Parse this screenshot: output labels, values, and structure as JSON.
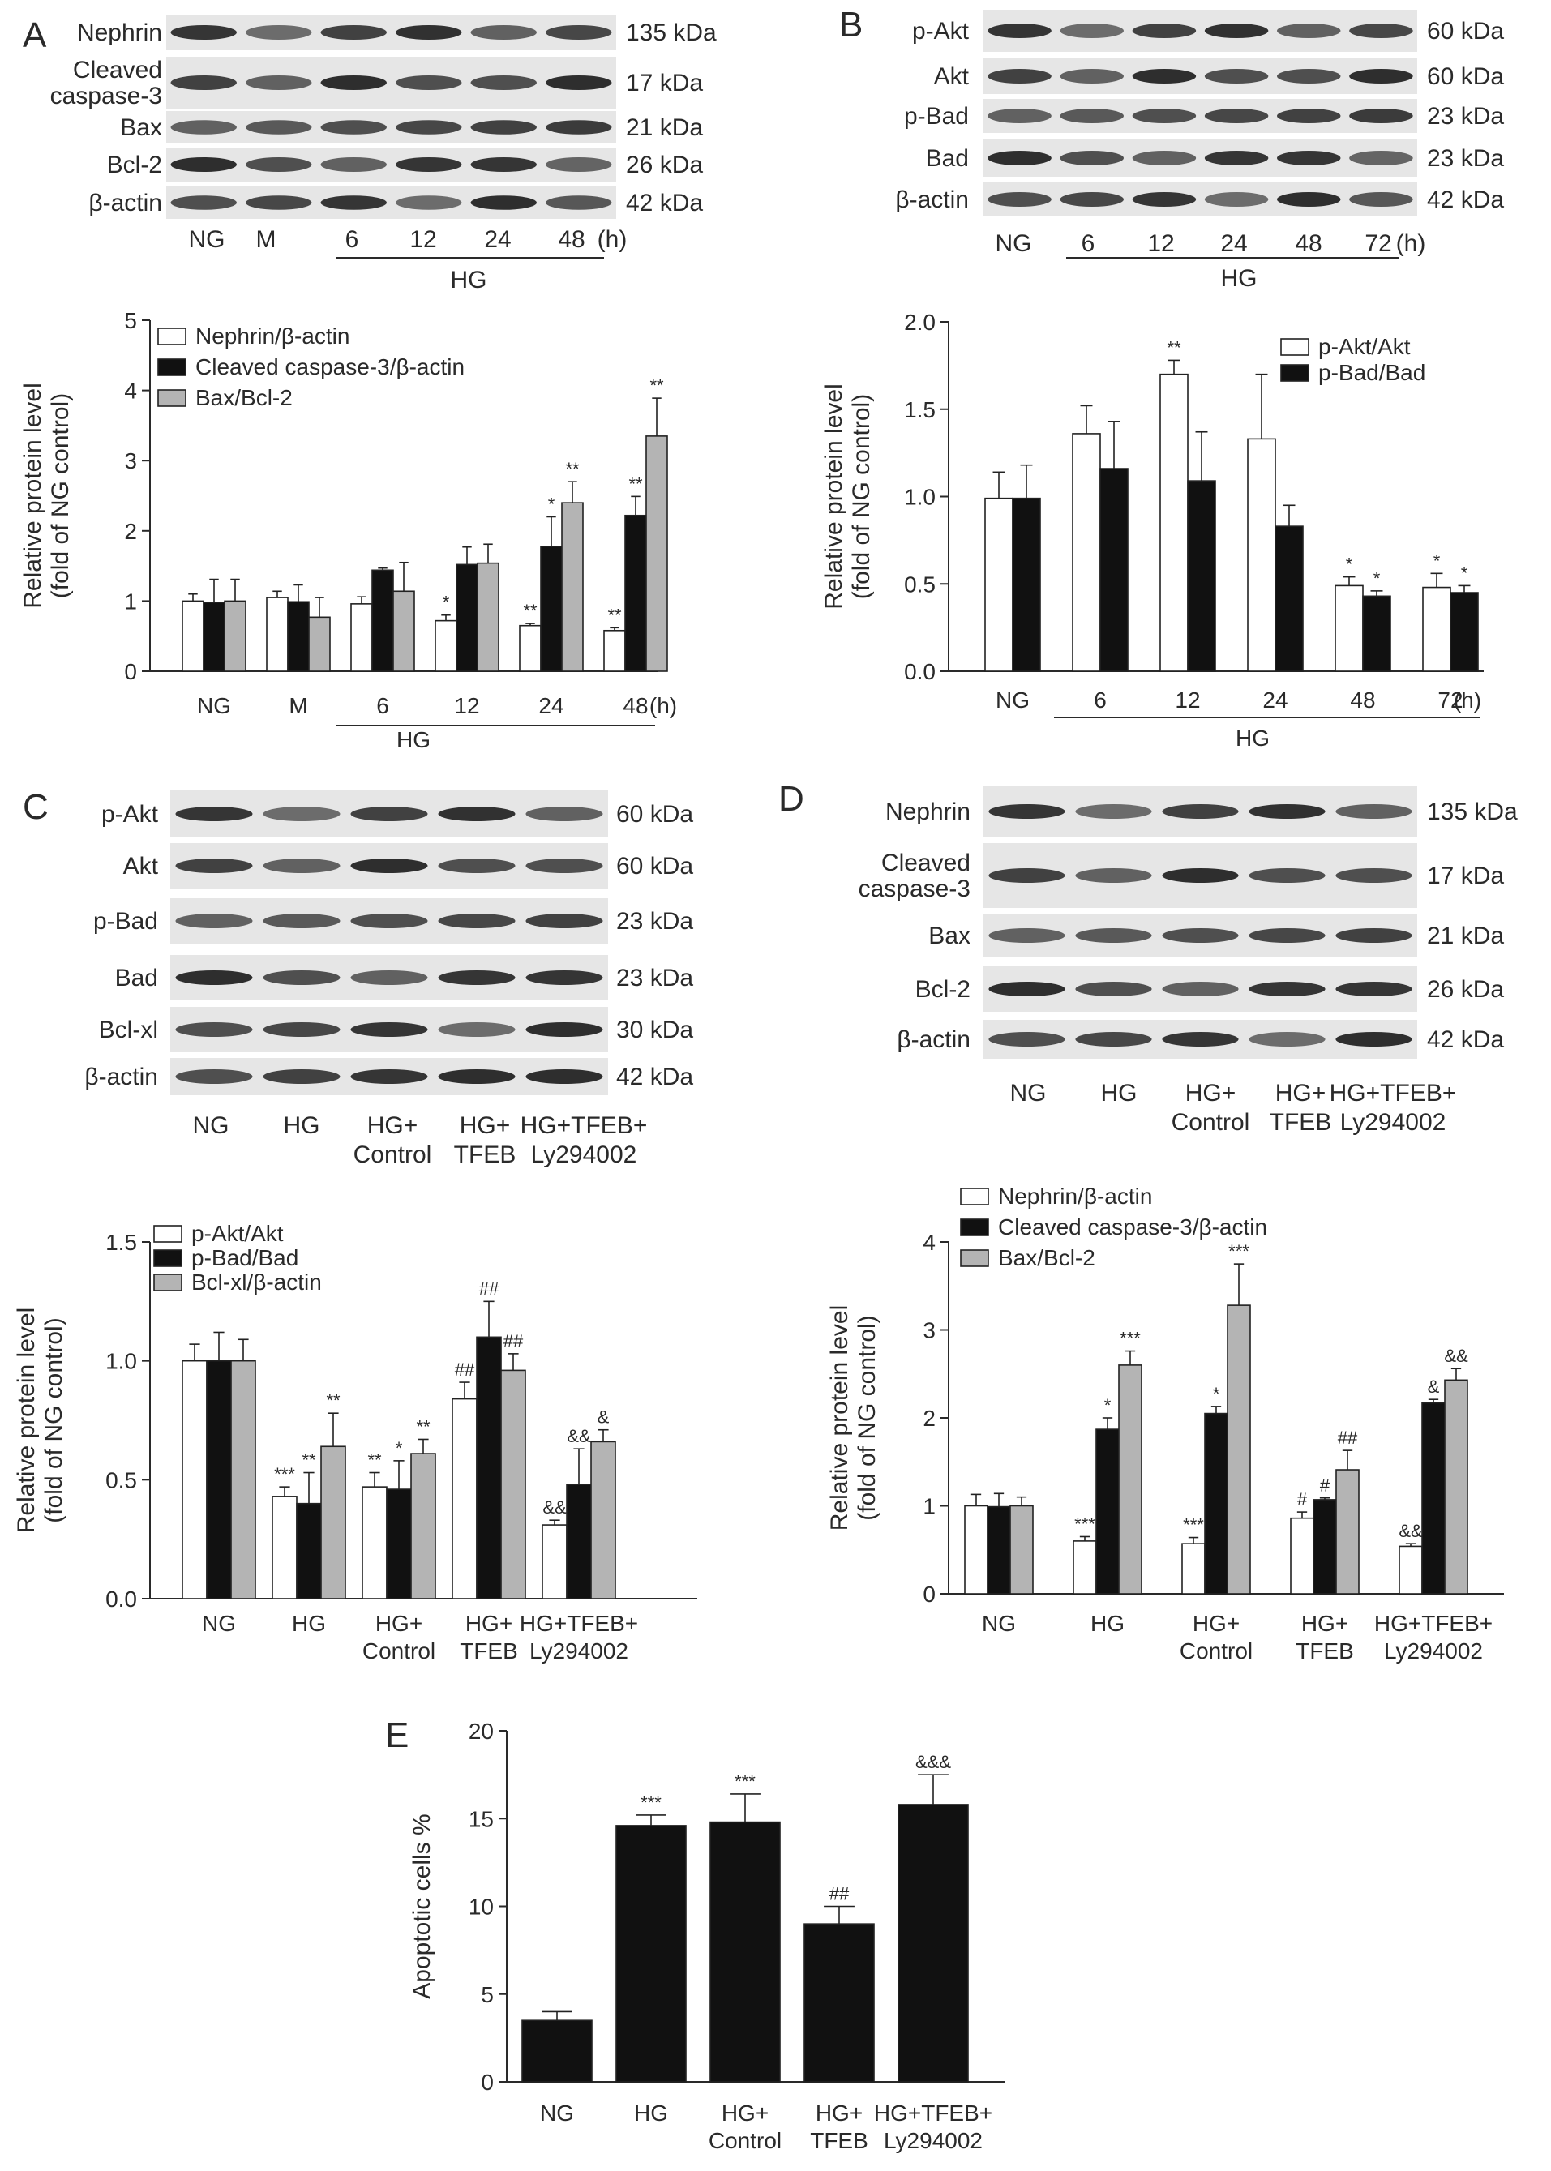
{
  "colors": {
    "white_bar": "#ffffff",
    "black_bar": "#111111",
    "gray_bar": "#b4b4b4",
    "axis": "#2a2a2a"
  },
  "panels": [
    {
      "letter": "A",
      "blots": [
        {
          "label": "Nephrin",
          "kda": "135 kDa"
        },
        {
          "label_lines": [
            "Cleaved",
            "caspase-3"
          ],
          "kda": "17 kDa"
        },
        {
          "label": "Bax",
          "kda": "21 kDa"
        },
        {
          "label": "Bcl-2",
          "kda": "26 kDa"
        },
        {
          "label": "β-actin",
          "kda": "42 kDa"
        }
      ],
      "lanes": [
        "NG",
        "M",
        "6",
        "12",
        "24",
        "48"
      ],
      "unit": "(h)",
      "group_label": "HG"
    },
    {
      "letter": "B",
      "blots": [
        {
          "label": "p-Akt",
          "kda": "60 kDa"
        },
        {
          "label": "Akt",
          "kda": "60 kDa"
        },
        {
          "label": "p-Bad",
          "kda": "23 kDa"
        },
        {
          "label": "Bad",
          "kda": "23 kDa"
        },
        {
          "label": "β-actin",
          "kda": "42 kDa"
        }
      ],
      "lanes": [
        "NG",
        "6",
        "12",
        "24",
        "48",
        "72"
      ],
      "unit": "(h)",
      "group_label": "HG"
    },
    {
      "letter": "C",
      "blots": [
        {
          "label": "p-Akt",
          "kda": "60 kDa"
        },
        {
          "label": "Akt",
          "kda": "60 kDa"
        },
        {
          "label": "p-Bad",
          "kda": "23 kDa"
        },
        {
          "label": "Bad",
          "kda": "23 kDa"
        },
        {
          "label": "Bcl-xl",
          "kda": "30 kDa"
        },
        {
          "label": "β-actin",
          "kda": "42 kDa"
        }
      ],
      "lanes": [
        [
          "NG"
        ],
        [
          "HG"
        ],
        [
          "HG+",
          "Control"
        ],
        [
          "HG+",
          "TFEB"
        ],
        [
          "HG+TFEB+",
          "Ly294002"
        ]
      ]
    },
    {
      "letter": "D",
      "blots": [
        {
          "label": "Nephrin",
          "kda": "135 kDa"
        },
        {
          "label_lines": [
            "Cleaved",
            "caspase-3"
          ],
          "kda": "17 kDa"
        },
        {
          "label": "Bax",
          "kda": "21 kDa"
        },
        {
          "label": "Bcl-2",
          "kda": "26 kDa"
        },
        {
          "label": "β-actin",
          "kda": "42 kDa"
        }
      ],
      "lanes": [
        [
          "NG"
        ],
        [
          "HG"
        ],
        [
          "HG+",
          "Control"
        ],
        [
          "HG+",
          "TFEB"
        ],
        [
          "HG+TFEB+",
          "Ly294002"
        ]
      ]
    },
    {
      "letter": "E"
    }
  ],
  "chart_data": [
    {
      "panel": "A",
      "type": "bar",
      "categories": [
        [
          "NG"
        ],
        [
          "M"
        ],
        [
          "6"
        ],
        [
          "12"
        ],
        [
          "24"
        ],
        [
          "48"
        ]
      ],
      "x_unit": "(h)",
      "group_label": "HG",
      "ylabel": [
        "Relative protein level",
        "(fold of NG control)"
      ],
      "ylim": [
        0,
        5
      ],
      "yticks": [
        "0",
        "1",
        "2",
        "3",
        "4",
        "5"
      ],
      "legend_position": "top-left",
      "series": [
        {
          "name": "Nephrin/β-actin",
          "color": "#ffffff",
          "values": [
            1.0,
            1.05,
            0.96,
            0.72,
            0.65,
            0.58
          ],
          "errors": [
            0.1,
            0.09,
            0.1,
            0.08,
            0.03,
            0.04
          ],
          "sig": [
            "",
            "",
            "",
            "*",
            "**",
            "**"
          ]
        },
        {
          "name": "Cleaved caspase-3/β-actin",
          "color": "#111111",
          "values": [
            0.98,
            0.99,
            1.44,
            1.52,
            1.78,
            2.22
          ],
          "errors": [
            0.33,
            0.24,
            0.03,
            0.25,
            0.42,
            0.27
          ],
          "sig": [
            "",
            "",
            "",
            "",
            "*",
            "**"
          ]
        },
        {
          "name": "Bax/Bcl-2",
          "color": "#b4b4b4",
          "values": [
            1.0,
            0.77,
            1.14,
            1.54,
            2.4,
            3.35
          ],
          "errors": [
            0.31,
            0.28,
            0.41,
            0.27,
            0.3,
            0.54
          ],
          "sig": [
            "",
            "",
            "",
            "",
            "**",
            "**"
          ]
        }
      ]
    },
    {
      "panel": "B",
      "type": "bar",
      "categories": [
        [
          "NG"
        ],
        [
          "6"
        ],
        [
          "12"
        ],
        [
          "24"
        ],
        [
          "48"
        ],
        [
          "72"
        ]
      ],
      "x_unit": "(h)",
      "group_label": "HG",
      "ylabel": [
        "Relative protein level",
        "(fold of NG control)"
      ],
      "ylim": [
        0,
        2.0
      ],
      "yticks": [
        "0.0",
        "0.5",
        "1.0",
        "1.5",
        "2.0"
      ],
      "legend_position": "top-right",
      "series": [
        {
          "name": "p-Akt/Akt",
          "color": "#ffffff",
          "values": [
            0.99,
            1.36,
            1.7,
            1.33,
            0.49,
            0.48
          ],
          "errors": [
            0.15,
            0.16,
            0.08,
            0.37,
            0.05,
            0.08
          ],
          "sig": [
            "",
            "",
            "**",
            "",
            "*",
            "*"
          ]
        },
        {
          "name": "p-Bad/Bad",
          "color": "#111111",
          "values": [
            0.99,
            1.16,
            1.09,
            0.83,
            0.43,
            0.45
          ],
          "errors": [
            0.19,
            0.27,
            0.28,
            0.12,
            0.03,
            0.04
          ],
          "sig": [
            "",
            "",
            "",
            "",
            "*",
            "*"
          ]
        }
      ]
    },
    {
      "panel": "C",
      "type": "bar",
      "categories": [
        [
          "NG"
        ],
        [
          "HG"
        ],
        [
          "HG+",
          "Control"
        ],
        [
          "HG+",
          "TFEB"
        ],
        [
          "HG+TFEB+",
          "Ly294002"
        ]
      ],
      "ylabel": [
        "Relative protein level",
        "(fold of NG control)"
      ],
      "ylim": [
        0,
        1.5
      ],
      "yticks": [
        "0.0",
        "0.5",
        "1.0",
        "1.5"
      ],
      "legend_position": "top-left",
      "series": [
        {
          "name": "p-Akt/Akt",
          "color": "#ffffff",
          "values": [
            1.0,
            0.43,
            0.47,
            0.84,
            0.31
          ],
          "errors": [
            0.07,
            0.04,
            0.06,
            0.07,
            0.02
          ],
          "sig": [
            "",
            "***",
            "**",
            "##",
            "&&"
          ]
        },
        {
          "name": "p-Bad/Bad",
          "color": "#111111",
          "values": [
            1.0,
            0.4,
            0.46,
            1.1,
            0.48
          ],
          "errors": [
            0.12,
            0.13,
            0.12,
            0.15,
            0.15
          ],
          "sig": [
            "",
            "**",
            "*",
            "##",
            "&&"
          ]
        },
        {
          "name": "Bcl-xl/β-actin",
          "color": "#b4b4b4",
          "values": [
            1.0,
            0.64,
            0.61,
            0.96,
            0.66
          ],
          "errors": [
            0.09,
            0.14,
            0.06,
            0.07,
            0.05
          ],
          "sig": [
            "",
            "**",
            "**",
            "##",
            "&"
          ]
        }
      ]
    },
    {
      "panel": "D",
      "type": "bar",
      "categories": [
        [
          "NG"
        ],
        [
          "HG"
        ],
        [
          "HG+",
          "Control"
        ],
        [
          "HG+",
          "TFEB"
        ],
        [
          "HG+TFEB+",
          "Ly294002"
        ]
      ],
      "ylabel": [
        "Relative protein level",
        "(fold of NG control)"
      ],
      "ylim": [
        0,
        4
      ],
      "yticks": [
        "0",
        "1",
        "2",
        "3",
        "4"
      ],
      "legend_position": "top-left",
      "series": [
        {
          "name": "Nephrin/β-actin",
          "color": "#ffffff",
          "values": [
            1.0,
            0.6,
            0.57,
            0.86,
            0.54
          ],
          "errors": [
            0.13,
            0.05,
            0.07,
            0.07,
            0.03
          ],
          "sig": [
            "",
            "***",
            "***",
            "#",
            "&&"
          ]
        },
        {
          "name": "Cleaved caspase-3/β-actin",
          "color": "#111111",
          "values": [
            0.99,
            1.87,
            2.05,
            1.07,
            2.17
          ],
          "errors": [
            0.15,
            0.13,
            0.08,
            0.02,
            0.04
          ],
          "sig": [
            "",
            "*",
            "*",
            "#",
            "&"
          ]
        },
        {
          "name": "Bax/Bcl-2",
          "color": "#b4b4b4",
          "values": [
            1.0,
            2.6,
            3.28,
            1.41,
            2.43
          ],
          "errors": [
            0.1,
            0.16,
            0.47,
            0.22,
            0.13
          ],
          "sig": [
            "",
            "***",
            "***",
            "##",
            "&&"
          ]
        }
      ]
    },
    {
      "panel": "E",
      "type": "bar",
      "categories": [
        [
          "NG"
        ],
        [
          "HG"
        ],
        [
          "HG+",
          "Control"
        ],
        [
          "HG+",
          "TFEB"
        ],
        [
          "HG+TFEB+",
          "Ly294002"
        ]
      ],
      "ylabel": [
        "Apoptotic cells %"
      ],
      "ylim": [
        0,
        20
      ],
      "yticks": [
        "0",
        "5",
        "10",
        "15",
        "20"
      ],
      "series": [
        {
          "name": "",
          "color": "#111111",
          "values": [
            3.5,
            14.6,
            14.8,
            9.0,
            15.8
          ],
          "errors": [
            0.5,
            0.6,
            1.6,
            1.0,
            1.7
          ],
          "sig": [
            "",
            "***",
            "***",
            "##",
            "&&&"
          ]
        }
      ]
    }
  ]
}
